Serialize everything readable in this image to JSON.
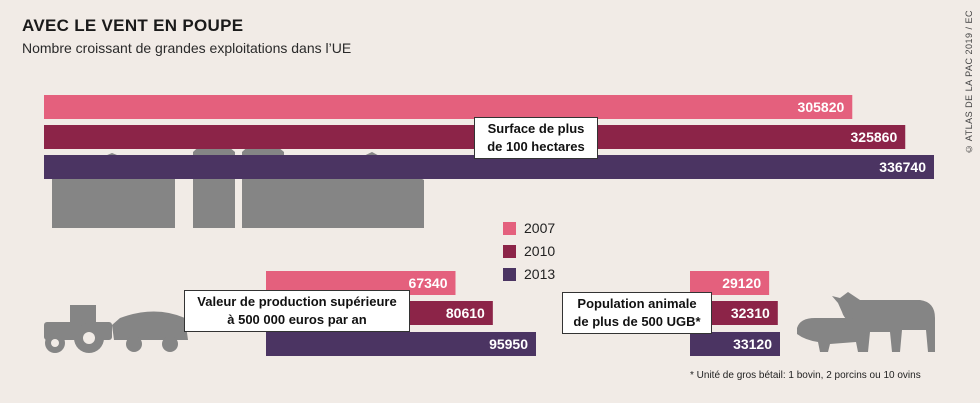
{
  "title": "AVEC LE VENT EN POUPE",
  "subtitle": "Nombre croissant de grandes exploitations dans l’UE",
  "credit": "© ATLAS DE LA PAC 2019 / EC",
  "footnote": "* Unité de gros bétail: 1 bovin, 2 porcins  ou 10 ovins",
  "colors": {
    "2007": "#e4607d",
    "2010": "#8c2448",
    "2013": "#4b3462",
    "illustration": "#858585"
  },
  "chart_data": {
    "type": "bar",
    "legend": [
      "2007",
      "2010",
      "2013"
    ],
    "groups": [
      {
        "label_line1": "Surface de plus",
        "label_line2": "de 100 hectares",
        "values": [
          305820,
          325860,
          336740
        ],
        "value_labels": [
          "305820",
          "325860",
          "336740"
        ]
      },
      {
        "label_line1": "Valeur de production supérieure",
        "label_line2": "à 500 000 euros par an",
        "values": [
          67340,
          80610,
          95950
        ],
        "value_labels": [
          "67340",
          "80610",
          "95950"
        ]
      },
      {
        "label_line1": "Population animale",
        "label_line2": "de plus de 500 UGB*",
        "values": [
          29120,
          32310,
          33120
        ],
        "value_labels": [
          "29120",
          "32310",
          "33120"
        ]
      }
    ]
  }
}
